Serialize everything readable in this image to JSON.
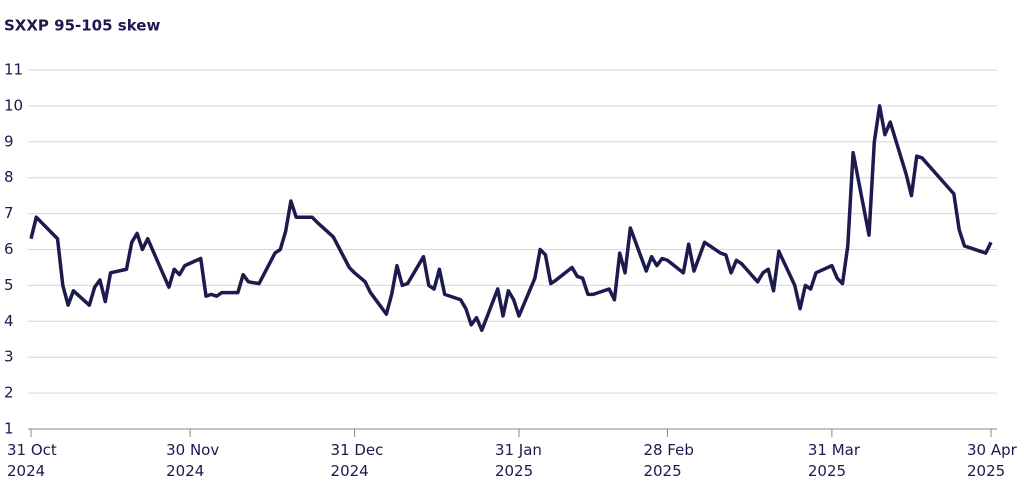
{
  "chart_data": {
    "type": "line",
    "title": "SXXP 95-105 skew",
    "x": [
      "2024-10-31",
      "2024-11-01",
      "2024-11-05",
      "2024-11-06",
      "2024-11-07",
      "2024-11-08",
      "2024-11-11",
      "2024-11-12",
      "2024-11-13",
      "2024-11-14",
      "2024-11-15",
      "2024-11-18",
      "2024-11-19",
      "2024-11-20",
      "2024-11-21",
      "2024-11-22",
      "2024-11-26",
      "2024-11-27",
      "2024-11-28",
      "2024-11-29",
      "2024-12-02",
      "2024-12-03",
      "2024-12-04",
      "2024-12-05",
      "2024-12-06",
      "2024-12-09",
      "2024-12-10",
      "2024-12-11",
      "2024-12-13",
      "2024-12-16",
      "2024-12-17",
      "2024-12-18",
      "2024-12-19",
      "2024-12-20",
      "2024-12-23",
      "2024-12-24",
      "2024-12-27",
      "2024-12-30",
      "2024-12-31",
      "2025-01-02",
      "2025-01-03",
      "2025-01-06",
      "2025-01-07",
      "2025-01-08",
      "2025-01-09",
      "2025-01-10",
      "2025-01-13",
      "2025-01-14",
      "2025-01-15",
      "2025-01-16",
      "2025-01-17",
      "2025-01-20",
      "2025-01-21",
      "2025-01-22",
      "2025-01-23",
      "2025-01-24",
      "2025-01-27",
      "2025-01-28",
      "2025-01-29",
      "2025-01-30",
      "2025-01-31",
      "2025-02-03",
      "2025-02-04",
      "2025-02-05",
      "2025-02-06",
      "2025-02-07",
      "2025-02-10",
      "2025-02-11",
      "2025-02-12",
      "2025-02-13",
      "2025-02-14",
      "2025-02-17",
      "2025-02-18",
      "2025-02-19",
      "2025-02-20",
      "2025-02-21",
      "2025-02-24",
      "2025-02-25",
      "2025-02-26",
      "2025-02-27",
      "2025-02-28",
      "2025-03-03",
      "2025-03-04",
      "2025-03-05",
      "2025-03-06",
      "2025-03-07",
      "2025-03-10",
      "2025-03-11",
      "2025-03-12",
      "2025-03-13",
      "2025-03-14",
      "2025-03-17",
      "2025-03-18",
      "2025-03-19",
      "2025-03-20",
      "2025-03-21",
      "2025-03-24",
      "2025-03-25",
      "2025-03-26",
      "2025-03-27",
      "2025-03-28",
      "2025-03-31",
      "2025-04-01",
      "2025-04-02",
      "2025-04-03",
      "2025-04-04",
      "2025-04-07",
      "2025-04-08",
      "2025-04-09",
      "2025-04-10",
      "2025-04-11",
      "2025-04-14",
      "2025-04-15",
      "2025-04-16",
      "2025-04-17",
      "2025-04-23",
      "2025-04-24",
      "2025-04-25",
      "2025-04-28",
      "2025-04-29",
      "2025-04-30"
    ],
    "series": [
      {
        "name": "SXXP 95-105 skew",
        "color": "#1c1a4e",
        "values": [
          6.3,
          6.9,
          6.3,
          5.0,
          4.45,
          4.85,
          4.45,
          4.95,
          5.15,
          4.55,
          5.35,
          5.45,
          6.2,
          6.45,
          6.0,
          6.3,
          4.95,
          5.45,
          5.3,
          5.55,
          5.75,
          4.7,
          4.75,
          4.7,
          4.8,
          4.8,
          5.3,
          5.1,
          5.05,
          5.9,
          6.0,
          6.5,
          7.35,
          6.9,
          6.9,
          6.75,
          6.35,
          5.5,
          5.35,
          5.1,
          4.8,
          4.2,
          4.75,
          5.55,
          5.0,
          5.05,
          5.8,
          5.0,
          4.9,
          5.45,
          4.75,
          4.6,
          4.35,
          3.9,
          4.1,
          3.75,
          4.9,
          4.15,
          4.85,
          4.6,
          4.15,
          5.2,
          6.0,
          5.85,
          5.05,
          5.15,
          5.5,
          5.25,
          5.2,
          4.75,
          4.75,
          4.9,
          4.6,
          5.9,
          5.35,
          6.6,
          5.4,
          5.8,
          5.55,
          5.75,
          5.7,
          5.35,
          6.15,
          5.4,
          5.8,
          6.2,
          5.9,
          5.85,
          5.35,
          5.7,
          5.6,
          5.1,
          5.35,
          5.45,
          4.85,
          5.95,
          5.0,
          4.35,
          5.0,
          4.9,
          5.35,
          5.55,
          5.2,
          5.05,
          6.1,
          8.7,
          6.4,
          9.0,
          10.0,
          9.2,
          9.55,
          8.1,
          7.5,
          8.6,
          8.55,
          7.55,
          6.55,
          6.1,
          5.95,
          5.9,
          6.2
        ]
      }
    ],
    "xlim": [
      "2024-10-31",
      "2025-04-30"
    ],
    "xticks": [
      {
        "value": "2024-10-31",
        "label": "31 Oct 2024"
      },
      {
        "value": "2024-11-30",
        "label": "30 Nov 2024"
      },
      {
        "value": "2024-12-31",
        "label": "31 Dec 2024"
      },
      {
        "value": "2025-01-31",
        "label": "31 Jan 2025"
      },
      {
        "value": "2025-02-28",
        "label": "28 Feb 2025"
      },
      {
        "value": "2025-03-31",
        "label": "31 Mar 2025"
      },
      {
        "value": "2025-04-30",
        "label": "30 Apr 2025"
      }
    ],
    "ylim": [
      1,
      11
    ],
    "yticks": [
      1,
      2,
      3,
      4,
      5,
      6,
      7,
      8,
      9,
      10,
      11
    ],
    "grid": true
  }
}
